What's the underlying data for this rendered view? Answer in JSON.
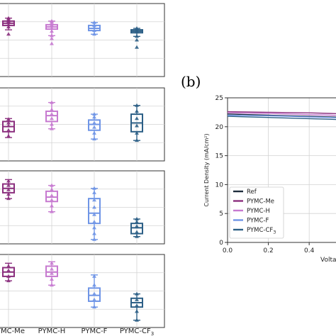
{
  "colors": {
    "pymc_me": "#8b2f7e",
    "pymc_h": "#c77ad0",
    "pymc_f": "#6f95e6",
    "pymc_cf3": "#2c5f86",
    "ref": "#1f2d3d",
    "grid": "#d3d3d3",
    "axis": "#333333"
  },
  "panel_b_label": "(b)",
  "categories": [
    "PYMC-Me",
    "PYMC-H",
    "PYMC-F",
    "PYMC-CF3"
  ],
  "category_labels": [
    {
      "main": "PYMC-Me",
      "sub": ""
    },
    {
      "main": "PYMC-H",
      "sub": ""
    },
    {
      "main": "PYMC-F",
      "sub": ""
    },
    {
      "main": "PYMC-CF",
      "sub": "3"
    }
  ],
  "chart_data": [
    {
      "type": "box",
      "panel": "a-1",
      "ylim": [
        0,
        1
      ],
      "boxes": [
        {
          "category": "PYMC-Me",
          "q1": 0.7,
          "median": 0.73,
          "q3": 0.76,
          "whisker_low": 0.64,
          "whisker_high": 0.8,
          "points": [
            0.58,
            0.68,
            0.71,
            0.74,
            0.76,
            0.78,
            0.8
          ]
        },
        {
          "category": "PYMC-H",
          "q1": 0.65,
          "median": 0.68,
          "q3": 0.71,
          "whisker_low": 0.56,
          "whisker_high": 0.76,
          "points": [
            0.45,
            0.52,
            0.56,
            0.62,
            0.66,
            0.7,
            0.74,
            0.76
          ]
        },
        {
          "category": "PYMC-F",
          "q1": 0.63,
          "median": 0.66,
          "q3": 0.7,
          "whisker_low": 0.58,
          "whisker_high": 0.74,
          "points": [
            0.58,
            0.63,
            0.67,
            0.7,
            0.74
          ]
        },
        {
          "category": "PYMC-CF3",
          "q1": 0.6,
          "median": 0.62,
          "q3": 0.64,
          "whisker_low": 0.55,
          "whisker_high": 0.66,
          "points": [
            0.4,
            0.5,
            0.55,
            0.61,
            0.63,
            0.66
          ]
        }
      ]
    },
    {
      "type": "box",
      "panel": "a-2",
      "ylim": [
        0,
        1
      ],
      "boxes": [
        {
          "category": "PYMC-Me",
          "q1": 0.4,
          "median": 0.47,
          "q3": 0.54,
          "whisker_low": 0.32,
          "whisker_high": 0.58,
          "points": [
            0.34,
            0.42,
            0.48,
            0.52,
            0.57
          ]
        },
        {
          "category": "PYMC-H",
          "q1": 0.54,
          "median": 0.62,
          "q3": 0.68,
          "whisker_low": 0.44,
          "whisker_high": 0.8,
          "points": [
            0.44,
            0.5,
            0.58,
            0.64,
            0.7,
            0.8
          ]
        },
        {
          "category": "PYMC-F",
          "q1": 0.42,
          "median": 0.5,
          "q3": 0.56,
          "whisker_low": 0.3,
          "whisker_high": 0.64,
          "points": [
            0.3,
            0.38,
            0.46,
            0.52,
            0.6,
            0.64
          ]
        },
        {
          "category": "PYMC-CF3",
          "q1": 0.4,
          "median": 0.52,
          "q3": 0.64,
          "whisker_low": 0.28,
          "whisker_high": 0.76,
          "points": [
            0.28,
            0.38,
            0.48,
            0.58,
            0.68,
            0.76
          ]
        }
      ]
    },
    {
      "type": "box",
      "panel": "a-3",
      "ylim": [
        0,
        1
      ],
      "boxes": [
        {
          "category": "PYMC-Me",
          "q1": 0.7,
          "median": 0.76,
          "q3": 0.82,
          "whisker_low": 0.62,
          "whisker_high": 0.88,
          "points": [
            0.62,
            0.68,
            0.74,
            0.8,
            0.86
          ]
        },
        {
          "category": "PYMC-H",
          "q1": 0.58,
          "median": 0.64,
          "q3": 0.72,
          "whisker_low": 0.44,
          "whisker_high": 0.8,
          "points": [
            0.44,
            0.52,
            0.6,
            0.66,
            0.74,
            0.8
          ]
        },
        {
          "category": "PYMC-F",
          "q1": 0.28,
          "median": 0.42,
          "q3": 0.62,
          "whisker_low": 0.06,
          "whisker_high": 0.76,
          "points": [
            0.06,
            0.14,
            0.22,
            0.3,
            0.4,
            0.5,
            0.6,
            0.7,
            0.76
          ]
        },
        {
          "category": "PYMC-CF3",
          "q1": 0.14,
          "median": 0.22,
          "q3": 0.28,
          "whisker_low": 0.1,
          "whisker_high": 0.34,
          "points": [
            0.1,
            0.16,
            0.24,
            0.3,
            0.34
          ]
        }
      ]
    },
    {
      "type": "box",
      "panel": "a-4",
      "ylim": [
        0,
        1
      ],
      "boxes": [
        {
          "category": "PYMC-Me",
          "q1": 0.7,
          "median": 0.76,
          "q3": 0.82,
          "whisker_low": 0.64,
          "whisker_high": 0.88,
          "points": [
            0.64,
            0.7,
            0.78,
            0.84
          ]
        },
        {
          "category": "PYMC-H",
          "q1": 0.7,
          "median": 0.76,
          "q3": 0.84,
          "whisker_low": 0.58,
          "whisker_high": 0.9,
          "points": [
            0.58,
            0.66,
            0.74,
            0.8,
            0.88
          ]
        },
        {
          "category": "PYMC-F",
          "q1": 0.36,
          "median": 0.44,
          "q3": 0.54,
          "whisker_low": 0.28,
          "whisker_high": 0.72,
          "points": [
            0.28,
            0.38,
            0.46,
            0.58,
            0.7
          ]
        },
        {
          "category": "PYMC-CF3",
          "q1": 0.28,
          "median": 0.34,
          "q3": 0.4,
          "whisker_low": 0.1,
          "whisker_high": 0.46,
          "points": [
            0.1,
            0.22,
            0.3,
            0.38,
            0.46
          ]
        }
      ]
    },
    {
      "type": "line",
      "panel": "b",
      "xlabel": "Volta",
      "ylabel": "Current Density (mA/cm²)",
      "xlim": [
        0.0,
        0.58
      ],
      "ylim": [
        0,
        25
      ],
      "xticks": [
        "0.0",
        "0.2",
        "0.4"
      ],
      "yticks": [
        "0",
        "5",
        "10",
        "15",
        "20",
        "25"
      ],
      "series": [
        {
          "name": "Ref",
          "color": "#1f2d3d",
          "x": [
            0.0,
            0.1,
            0.2,
            0.3,
            0.4,
            0.5,
            0.58
          ],
          "y": [
            22.2,
            22.1,
            22.0,
            21.9,
            21.8,
            21.7,
            21.6
          ]
        },
        {
          "name": "PYMC-Me",
          "color": "#8b2f7e",
          "x": [
            0.0,
            0.1,
            0.2,
            0.3,
            0.4,
            0.5,
            0.58
          ],
          "y": [
            22.6,
            22.55,
            22.5,
            22.45,
            22.4,
            22.3,
            22.2
          ]
        },
        {
          "name": "PYMC-H",
          "color": "#c77ad0",
          "x": [
            0.0,
            0.1,
            0.2,
            0.3,
            0.4,
            0.5,
            0.58
          ],
          "y": [
            22.4,
            22.35,
            22.3,
            22.2,
            22.1,
            22.0,
            21.9
          ]
        },
        {
          "name": "PYMC-F",
          "color": "#6f95e6",
          "x": [
            0.0,
            0.1,
            0.2,
            0.3,
            0.4,
            0.5,
            0.58
          ],
          "y": [
            22.0,
            21.95,
            21.9,
            21.8,
            21.7,
            21.6,
            21.5
          ]
        },
        {
          "name": "PYMC-CF3",
          "color": "#2c5f86",
          "x": [
            0.0,
            0.1,
            0.2,
            0.3,
            0.4,
            0.5,
            0.58
          ],
          "y": [
            21.8,
            21.7,
            21.6,
            21.5,
            21.4,
            21.3,
            21.2
          ]
        }
      ],
      "legend": [
        {
          "main": "Ref",
          "sub": ""
        },
        {
          "main": "PYMC-Me",
          "sub": ""
        },
        {
          "main": "PYMC-H",
          "sub": ""
        },
        {
          "main": "PYMC-F",
          "sub": ""
        },
        {
          "main": "PYMC-CF",
          "sub": "3"
        }
      ],
      "legend_position": "lower-left",
      "grid": true
    }
  ]
}
